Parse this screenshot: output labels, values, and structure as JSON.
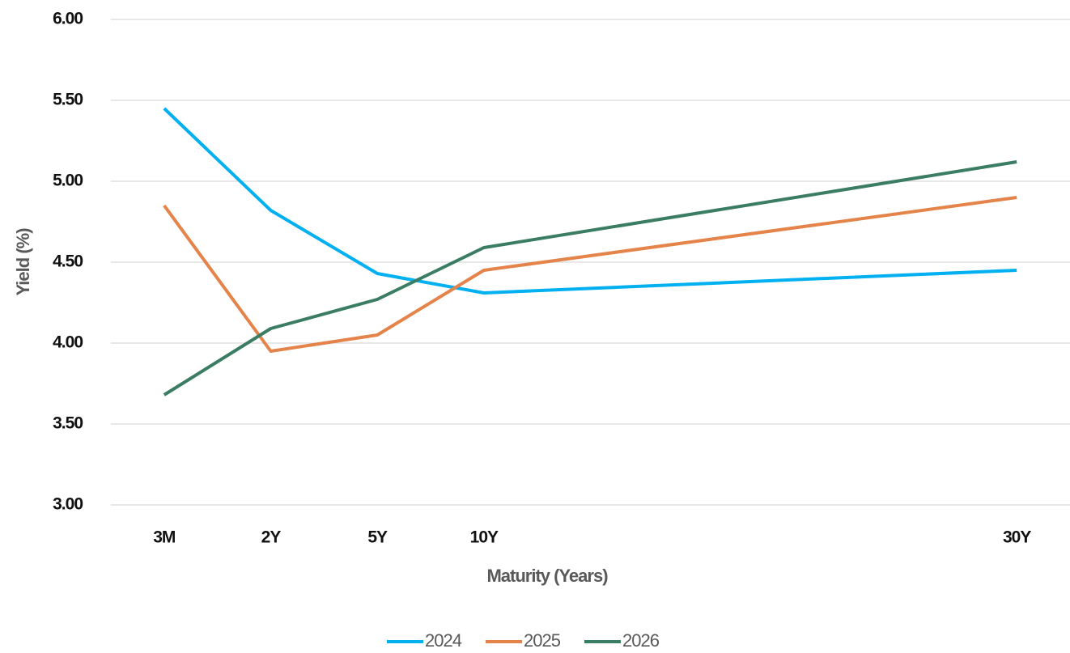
{
  "chart_data": {
    "type": "line",
    "x_label": "Maturity (Years)",
    "y_label": "Yield (%)",
    "categories": [
      "3M",
      "2Y",
      "5Y",
      "10Y",
      null,
      null,
      null,
      null,
      "30Y"
    ],
    "connect_gaps": true,
    "series": [
      {
        "name": "2024",
        "color": "#00b0f0",
        "values": [
          5.45,
          4.82,
          4.43,
          4.31,
          null,
          null,
          null,
          null,
          4.45
        ]
      },
      {
        "name": "2025",
        "color": "#e4844a",
        "values": [
          4.85,
          3.95,
          4.05,
          4.45,
          null,
          null,
          null,
          null,
          4.9
        ]
      },
      {
        "name": "2026",
        "color": "#3a7d63",
        "values": [
          3.68,
          4.09,
          4.27,
          4.59,
          null,
          null,
          null,
          null,
          5.12
        ]
      }
    ],
    "ylim": [
      3,
      6
    ],
    "yticks": [
      {
        "value": 3,
        "label": "3.00"
      },
      {
        "value": 3.5,
        "label": "3.50"
      },
      {
        "value": 4,
        "label": "4.00"
      },
      {
        "value": 4.5,
        "label": "4.50"
      },
      {
        "value": 5,
        "label": "5.00"
      },
      {
        "value": 5.5,
        "label": "5.50"
      },
      {
        "value": 6,
        "label": "6.00"
      }
    ],
    "grid": true,
    "legend": "bottom"
  }
}
